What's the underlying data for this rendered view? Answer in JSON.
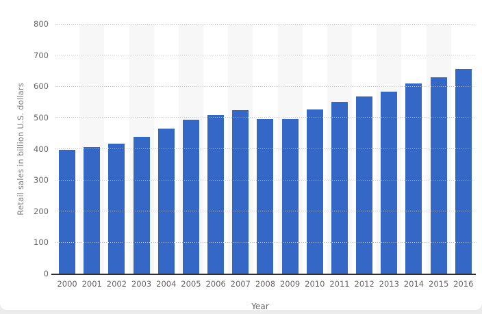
{
  "chart_data": {
    "type": "bar",
    "title": "",
    "categories": [
      "2000",
      "2001",
      "2002",
      "2003",
      "2004",
      "2005",
      "2006",
      "2007",
      "2008",
      "2009",
      "2010",
      "2011",
      "2012",
      "2013",
      "2014",
      "2015",
      "2016"
    ],
    "values": [
      397,
      406,
      416,
      438,
      465,
      494,
      509,
      524,
      496,
      496,
      527,
      550,
      567,
      582,
      610,
      630,
      655
    ],
    "xlabel": "Year",
    "ylabel": "Retail sales in billion U.S. dollars",
    "ylim": [
      0,
      800
    ],
    "yticks": [
      0,
      100,
      200,
      300,
      400,
      500,
      600,
      700,
      800
    ],
    "grid": "horizontal-dotted",
    "legend_position": "none",
    "bar_color": "#3467c6",
    "stripe_color": "#f7f7f7",
    "gridline_color": "#c7c7c7",
    "axis_label_color": "#666666",
    "baseline_color": "#2e2e2e"
  }
}
